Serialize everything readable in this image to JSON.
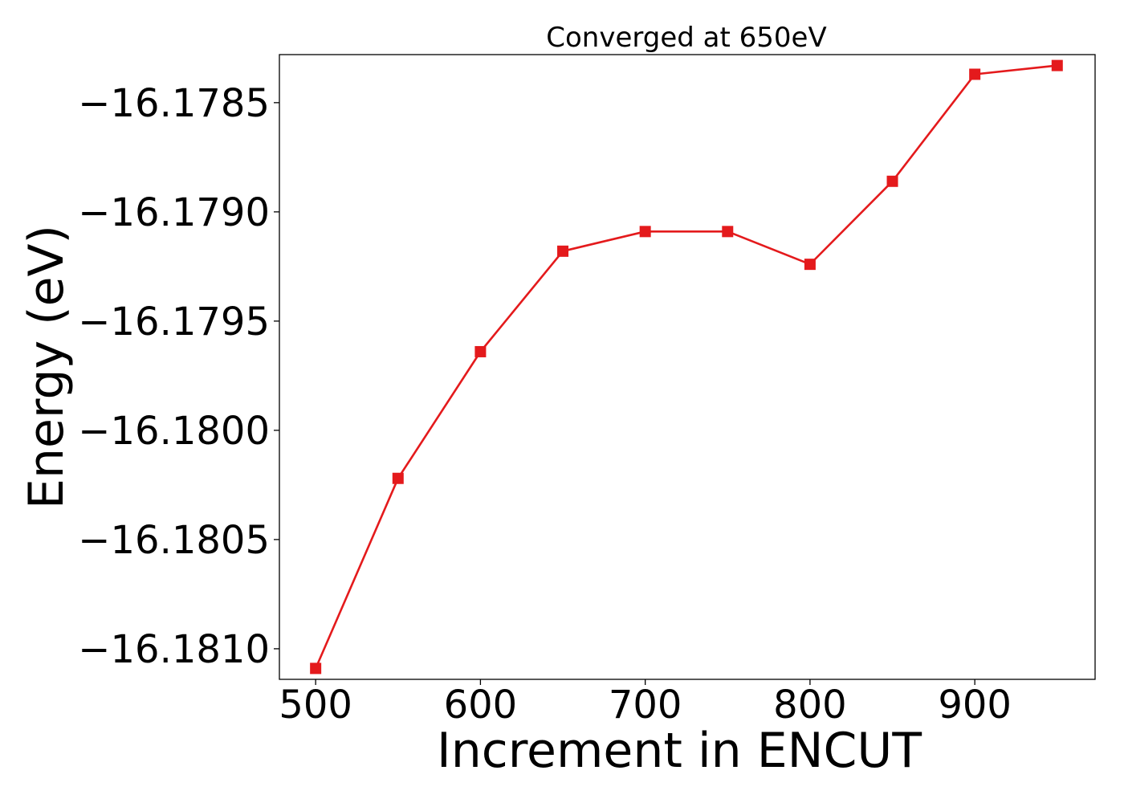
{
  "chart_data": {
    "type": "line",
    "title": "Converged at 650eV",
    "xlabel": "Increment in ENCUT",
    "ylabel": "Energy (eV)",
    "xlim": [
      478,
      973
    ],
    "ylim": [
      -16.18114,
      -16.17828
    ],
    "xticks": [
      500,
      600,
      700,
      800,
      900
    ],
    "xtick_labels": [
      "500",
      "600",
      "700",
      "800",
      "900"
    ],
    "yticks": [
      -16.1785,
      -16.179,
      -16.1795,
      -16.18,
      -16.1805,
      -16.181
    ],
    "ytick_labels": [
      "−16.1785",
      "−16.1790",
      "−16.1795",
      "−16.1800",
      "−16.1805",
      "−16.1810"
    ],
    "grid": false,
    "series": [
      {
        "color": "#e41a1c",
        "marker": "square",
        "x": [
          500,
          550,
          600,
          650,
          700,
          750,
          800,
          850,
          900,
          950
        ],
        "y": [
          -16.18109,
          -16.18022,
          -16.17964,
          -16.17918,
          -16.17909,
          -16.17909,
          -16.17924,
          -16.17886,
          -16.17837,
          -16.17833
        ]
      }
    ]
  }
}
